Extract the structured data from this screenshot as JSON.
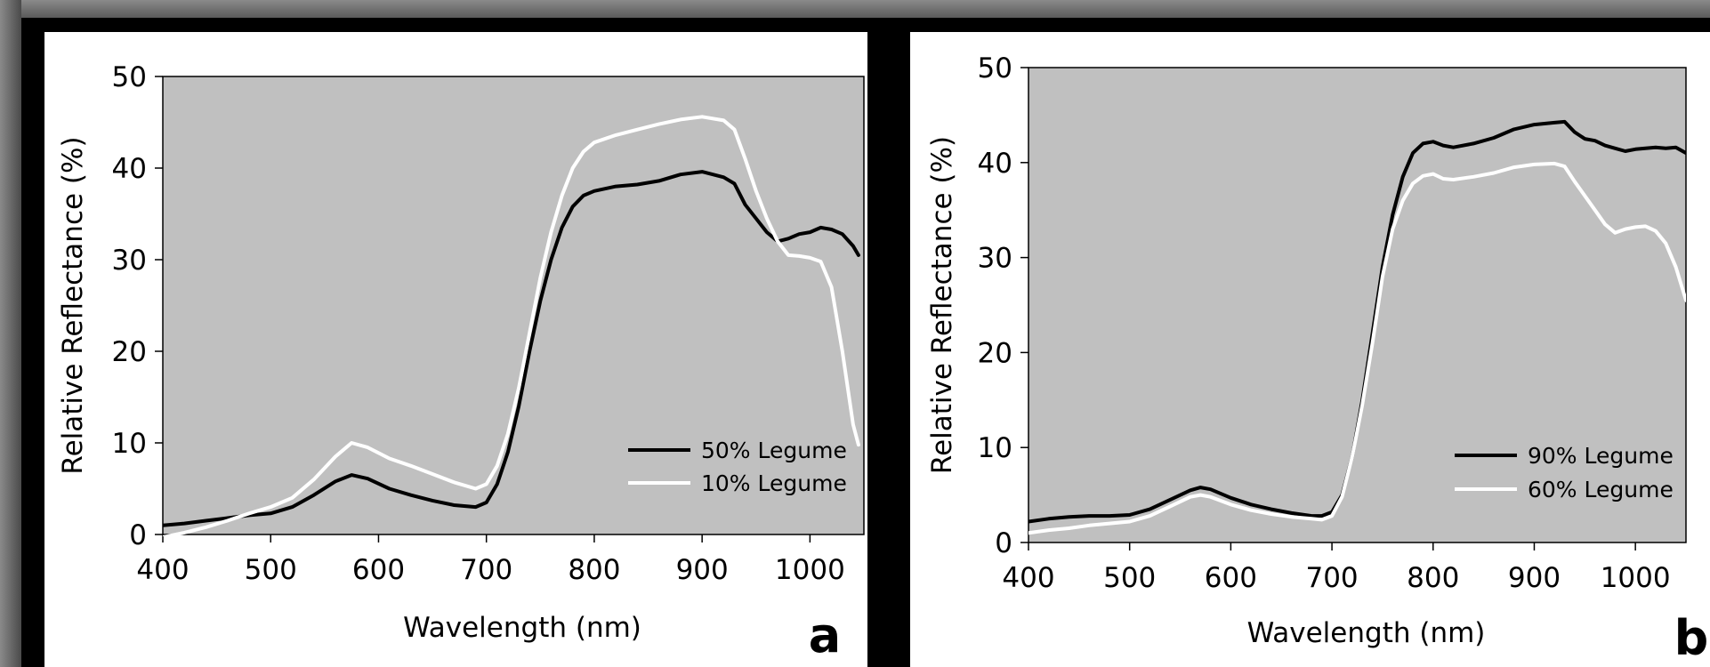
{
  "colors": {
    "plot_background": "#c0c0c0",
    "series_dark": "#000000",
    "series_light": "#ffffff",
    "frame": "#000000"
  },
  "chart_data": [
    {
      "type": "line",
      "panel_label": "a",
      "xlabel": "Wavelength (nm)",
      "ylabel": "Relative Reflectance (%)",
      "xlim": [
        400,
        1050
      ],
      "ylim": [
        0,
        50
      ],
      "xticks": [
        400,
        500,
        600,
        700,
        800,
        900,
        1000
      ],
      "yticks": [
        0,
        10,
        20,
        30,
        40,
        50
      ],
      "grid": false,
      "legend_position": "bottom-right",
      "series": [
        {
          "name": "50% Legume",
          "color": "#000000",
          "x": [
            400,
            420,
            440,
            460,
            480,
            500,
            520,
            540,
            560,
            575,
            590,
            610,
            630,
            650,
            670,
            690,
            700,
            710,
            720,
            730,
            740,
            750,
            760,
            770,
            780,
            790,
            800,
            820,
            840,
            860,
            880,
            900,
            920,
            930,
            940,
            950,
            960,
            970,
            980,
            990,
            1000,
            1010,
            1020,
            1030,
            1040,
            1045
          ],
          "y": [
            1,
            1.2,
            1.5,
            1.8,
            2.1,
            2.3,
            3,
            4.3,
            5.8,
            6.5,
            6.1,
            5,
            4.3,
            3.7,
            3.2,
            3,
            3.5,
            5.5,
            9,
            14,
            20,
            25.5,
            30,
            33.5,
            35.8,
            37,
            37.5,
            38,
            38.2,
            38.6,
            39.3,
            39.6,
            39,
            38.3,
            36,
            34.5,
            33,
            32,
            32.3,
            32.8,
            33,
            33.5,
            33.3,
            32.8,
            31.5,
            30.5
          ]
        },
        {
          "name": "10% Legume",
          "color": "#ffffff",
          "x": [
            400,
            420,
            440,
            460,
            480,
            500,
            520,
            540,
            560,
            575,
            590,
            610,
            630,
            650,
            670,
            690,
            700,
            710,
            720,
            730,
            740,
            750,
            760,
            770,
            780,
            790,
            800,
            820,
            840,
            860,
            880,
            900,
            920,
            930,
            940,
            950,
            960,
            970,
            980,
            990,
            1000,
            1010,
            1020,
            1030,
            1040,
            1045
          ],
          "y": [
            -0.3,
            0.2,
            0.8,
            1.5,
            2.3,
            3,
            4,
            6,
            8.5,
            10,
            9.5,
            8.3,
            7.5,
            6.6,
            5.7,
            5,
            5.5,
            7.5,
            11,
            16,
            22,
            28,
            33,
            37,
            40,
            41.8,
            42.8,
            43.6,
            44.2,
            44.8,
            45.3,
            45.6,
            45.2,
            44.2,
            41,
            37.5,
            34.5,
            32,
            30.5,
            30.4,
            30.2,
            29.8,
            27,
            20,
            12,
            9.8
          ]
        }
      ]
    },
    {
      "type": "line",
      "panel_label": "b",
      "xlabel": "Wavelength (nm)",
      "ylabel": "Relative Reflectance (%)",
      "xlim": [
        400,
        1050
      ],
      "ylim": [
        0,
        50
      ],
      "xticks": [
        400,
        500,
        600,
        700,
        800,
        900,
        1000
      ],
      "yticks": [
        0,
        10,
        20,
        30,
        40,
        50
      ],
      "grid": false,
      "legend_position": "bottom-right",
      "series": [
        {
          "name": "90% Legume",
          "color": "#000000",
          "x": [
            400,
            420,
            440,
            460,
            480,
            500,
            520,
            540,
            560,
            570,
            580,
            600,
            620,
            640,
            660,
            680,
            690,
            700,
            710,
            720,
            730,
            740,
            750,
            760,
            770,
            780,
            790,
            800,
            810,
            820,
            840,
            860,
            880,
            900,
            920,
            930,
            940,
            950,
            960,
            970,
            980,
            990,
            1000,
            1010,
            1020,
            1030,
            1040,
            1050
          ],
          "y": [
            2.2,
            2.5,
            2.7,
            2.8,
            2.8,
            2.9,
            3.5,
            4.5,
            5.5,
            5.8,
            5.6,
            4.7,
            4,
            3.5,
            3.1,
            2.8,
            2.8,
            3.2,
            5,
            9,
            15,
            22,
            29,
            34.5,
            38.5,
            41,
            42,
            42.2,
            41.8,
            41.6,
            42,
            42.6,
            43.5,
            44,
            44.2,
            44.3,
            43.2,
            42.5,
            42.3,
            41.8,
            41.5,
            41.2,
            41.4,
            41.5,
            41.6,
            41.5,
            41.6,
            41
          ]
        },
        {
          "name": "60% Legume",
          "color": "#ffffff",
          "x": [
            400,
            420,
            440,
            460,
            480,
            500,
            520,
            540,
            560,
            570,
            580,
            600,
            620,
            640,
            660,
            680,
            690,
            700,
            710,
            720,
            730,
            740,
            750,
            760,
            770,
            780,
            790,
            800,
            810,
            820,
            840,
            860,
            880,
            900,
            920,
            930,
            940,
            950,
            960,
            970,
            980,
            990,
            1000,
            1010,
            1020,
            1030,
            1040,
            1050
          ],
          "y": [
            1,
            1.3,
            1.5,
            1.8,
            2,
            2.2,
            2.8,
            3.8,
            4.8,
            5,
            4.8,
            4,
            3.4,
            3,
            2.7,
            2.5,
            2.4,
            2.8,
            4.8,
            9,
            14.5,
            21,
            28,
            33,
            36,
            37.8,
            38.6,
            38.8,
            38.3,
            38.2,
            38.5,
            38.9,
            39.5,
            39.8,
            39.9,
            39.6,
            38,
            36.5,
            35,
            33.5,
            32.6,
            33,
            33.2,
            33.3,
            32.8,
            31.5,
            29,
            25.5
          ]
        }
      ]
    }
  ]
}
